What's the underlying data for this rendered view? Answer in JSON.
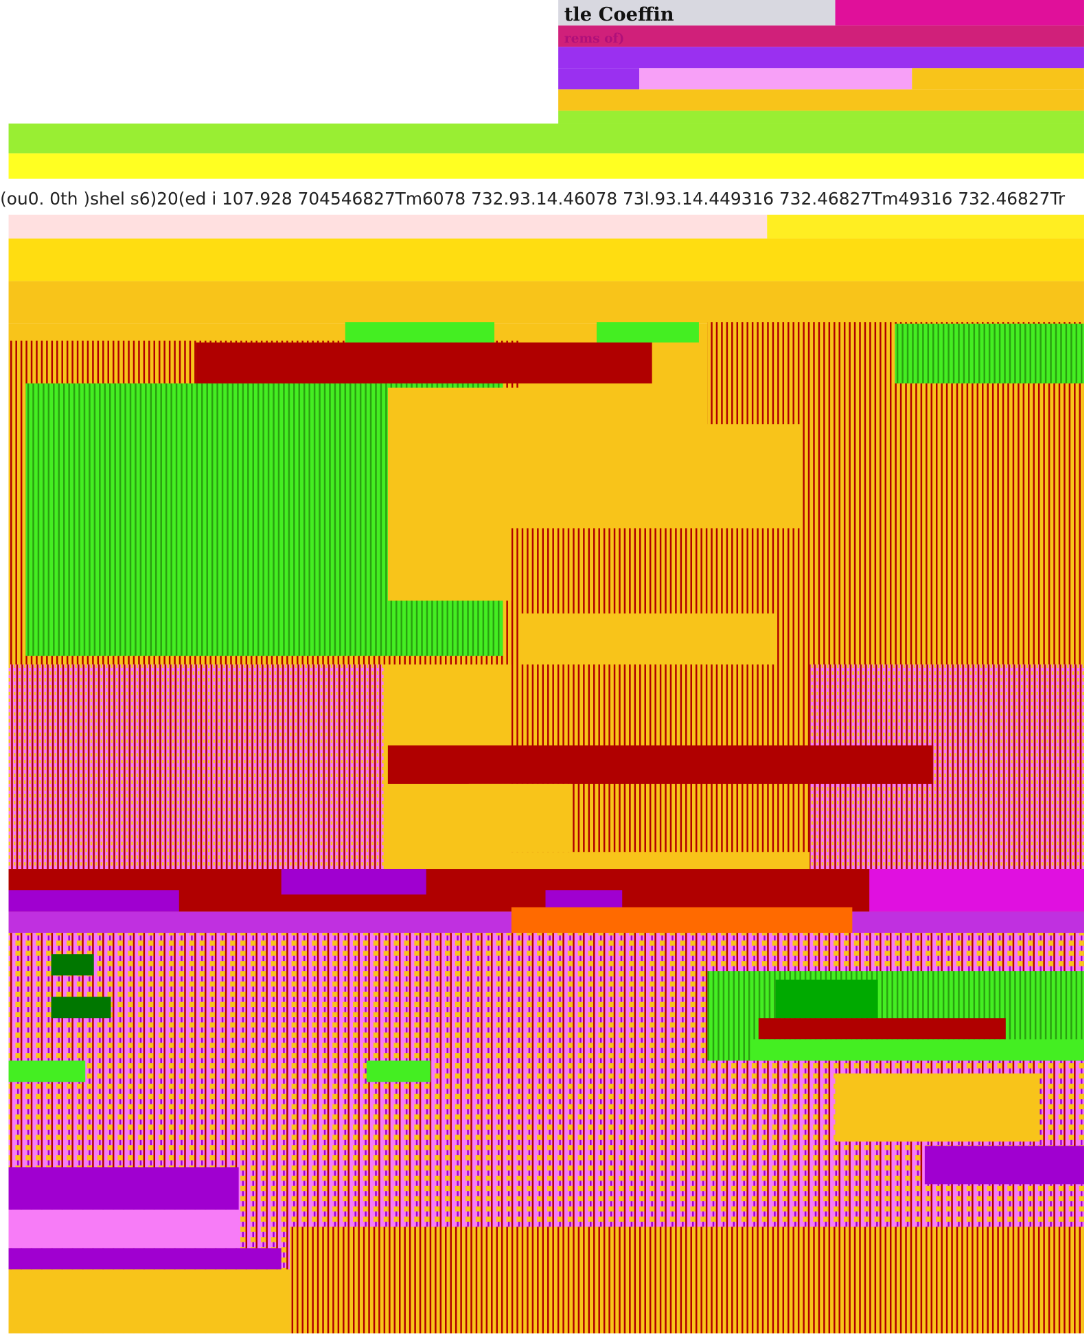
{
  "header": {
    "title": "tle Coeffin",
    "subtitle": "rems of)"
  },
  "text_line": "(ou0. 0th )shel s6)20(ed  i 107.928 704546827Tm6078 732.93.14.46078 73l.93.14.449316 732.46827Tm49316 732.46827Tr"
}
